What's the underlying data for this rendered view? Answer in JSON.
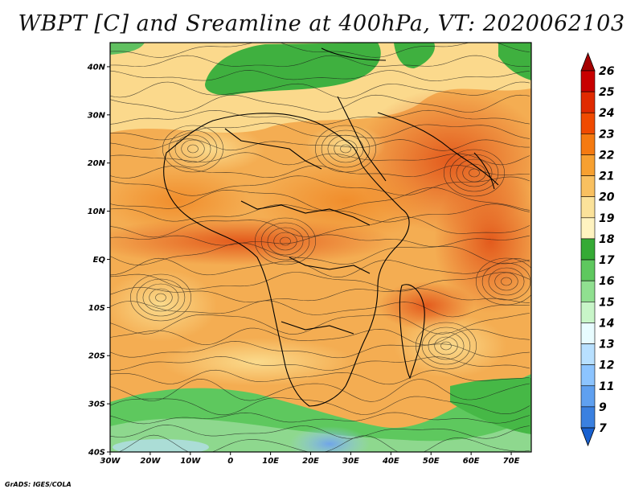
{
  "title": "WBPT [C] and Sreamline at 400hPa, VT: 2020062103",
  "footer": "GrADS: IGES/COLA",
  "map": {
    "lat_labels": [
      "40N",
      "30N",
      "20N",
      "10N",
      "EQ",
      "10S",
      "20S",
      "30S",
      "40S"
    ],
    "lon_labels": [
      "30W",
      "20W",
      "10W",
      "0",
      "10E",
      "20E",
      "30E",
      "40E",
      "50E",
      "60E",
      "70E"
    ],
    "lat_range": [
      -40,
      45
    ],
    "lon_range": [
      -30,
      75
    ]
  },
  "colorbar": {
    "labels": [
      "26",
      "25",
      "24",
      "23",
      "22",
      "21",
      "20",
      "19",
      "18",
      "17",
      "16",
      "15",
      "14",
      "13",
      "12",
      "11",
      "9",
      "7"
    ],
    "colors": [
      "#a50000",
      "#c80000",
      "#e02a00",
      "#f04a00",
      "#f57a10",
      "#f7a030",
      "#f9c060",
      "#fbe29a",
      "#fff3c0",
      "#35aa35",
      "#5ec85e",
      "#90e090",
      "#c8f5c8",
      "#e8fcff",
      "#b8e0ff",
      "#8cc4ff",
      "#5fa0f0",
      "#3a80e0",
      "#1860d0"
    ]
  }
}
